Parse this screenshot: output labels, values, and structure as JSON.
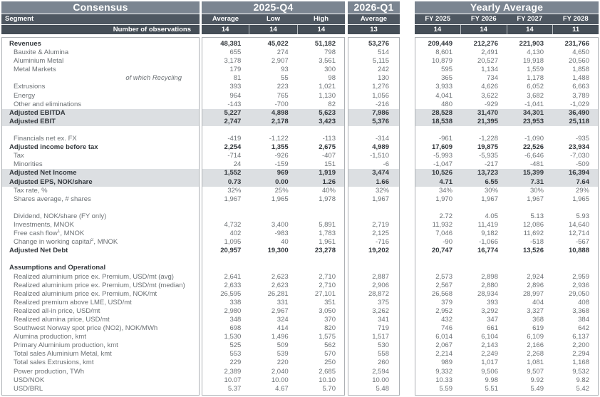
{
  "header": {
    "left": {
      "title": "Consensus",
      "segment": "Segment",
      "obs_label": "Number of observations"
    },
    "q4": {
      "title": "2025-Q4",
      "cols": [
        "Average",
        "Low",
        "High"
      ],
      "obs": [
        "14",
        "14",
        "14"
      ]
    },
    "q1": {
      "title": "2026-Q1",
      "cols": [
        "Average"
      ],
      "obs": [
        "13"
      ]
    },
    "fy": {
      "title": "Yearly Average",
      "cols": [
        "FY 2025",
        "FY 2026",
        "FY 2027",
        "FY 2028"
      ],
      "obs": [
        "14",
        "14",
        "14",
        "11"
      ]
    }
  },
  "colors": {
    "title_band": "#7b8591",
    "column_header_band": "#4e5761",
    "observations_band": "#454e57",
    "highlight_row": "#dcdfe2",
    "body_border": "#adb1b5",
    "text_gray": "#6b7074",
    "text_dark": "#33383d"
  },
  "rows": [
    {
      "label": "Revenues",
      "b": 1,
      "q4": [
        "48,381",
        "45,022",
        "51,182"
      ],
      "q1": [
        "53,276"
      ],
      "fy": [
        "209,449",
        "212,276",
        "221,903",
        "231,766"
      ]
    },
    {
      "label": "Bauxite & Alumina",
      "q4": [
        "655",
        "274",
        "798"
      ],
      "q1": [
        "514"
      ],
      "fy": [
        "8,601",
        "2,491",
        "4,130",
        "4,650"
      ]
    },
    {
      "label": "Aluminium Metal",
      "q4": [
        "3,178",
        "2,907",
        "3,561"
      ],
      "q1": [
        "5,115"
      ],
      "fy": [
        "10,879",
        "20,527",
        "19,918",
        "20,560"
      ]
    },
    {
      "label": "Metal Markets",
      "q4": [
        "179",
        "93",
        "300"
      ],
      "q1": [
        "242"
      ],
      "fy": [
        "595",
        "1,134",
        "1,559",
        "1,858"
      ]
    },
    {
      "label": "of which Recycling",
      "it": 1,
      "q4": [
        "81",
        "55",
        "98"
      ],
      "q1": [
        "130"
      ],
      "fy": [
        "365",
        "734",
        "1,178",
        "1,488"
      ]
    },
    {
      "label": "Extrusions",
      "q4": [
        "393",
        "223",
        "1,021"
      ],
      "q1": [
        "1,276"
      ],
      "fy": [
        "3,933",
        "4,626",
        "6,052",
        "6,663"
      ]
    },
    {
      "label": "Energy",
      "q4": [
        "964",
        "765",
        "1,130"
      ],
      "q1": [
        "1,056"
      ],
      "fy": [
        "4,041",
        "3,622",
        "3,682",
        "3,789"
      ]
    },
    {
      "label": "Other and eliminations",
      "q4": [
        "-143",
        "-700",
        "82"
      ],
      "q1": [
        "-216"
      ],
      "fy": [
        "480",
        "-929",
        "-1,041",
        "-1,029"
      ]
    },
    {
      "label": "Adjusted EBITDA",
      "b": 1,
      "hl": 1,
      "q4": [
        "5,227",
        "4,898",
        "5,623"
      ],
      "q1": [
        "7,986"
      ],
      "fy": [
        "28,528",
        "31,470",
        "34,301",
        "36,490"
      ]
    },
    {
      "label": "Adjusted EBIT",
      "b": 1,
      "hl": 1,
      "q4": [
        "2,747",
        "2,178",
        "3,423"
      ],
      "q1": [
        "5,376"
      ],
      "fy": [
        "18,538",
        "21,395",
        "23,953",
        "25,118"
      ]
    },
    {
      "label": ""
    },
    {
      "label": "Financials net ex. FX",
      "q4": [
        "-419",
        "-1,122",
        "-113"
      ],
      "q1": [
        "-314"
      ],
      "fy": [
        "-961",
        "-1,228",
        "-1,090",
        "-935"
      ]
    },
    {
      "label": "Adjusted income before tax",
      "b": 1,
      "q4": [
        "2,254",
        "1,355",
        "2,675"
      ],
      "q1": [
        "4,989"
      ],
      "fy": [
        "17,609",
        "19,875",
        "22,526",
        "23,934"
      ]
    },
    {
      "label": "Tax",
      "q4": [
        "-714",
        "-926",
        "-407"
      ],
      "q1": [
        "-1,510"
      ],
      "fy": [
        "-5,993",
        "-5,935",
        "-6,646",
        "-7,030"
      ]
    },
    {
      "label": "Minorities",
      "q4": [
        "24",
        "-159",
        "151"
      ],
      "q1": [
        "-6"
      ],
      "fy": [
        "-1,047",
        "-217",
        "-481",
        "-509"
      ]
    },
    {
      "label": "Adjusted Net Income",
      "b": 1,
      "hl": 1,
      "q4": [
        "1,552",
        "969",
        "1,919"
      ],
      "q1": [
        "3,474"
      ],
      "fy": [
        "10,526",
        "13,723",
        "15,399",
        "16,394"
      ]
    },
    {
      "label": "Adjusted EPS, NOK/share",
      "b": 1,
      "hl": 1,
      "q4": [
        "0.73",
        "0.00",
        "1.26"
      ],
      "q1": [
        "1.66"
      ],
      "fy": [
        "4.71",
        "6.55",
        "7.31",
        "7.64"
      ]
    },
    {
      "label": "Tax rate, %",
      "q4": [
        "32%",
        "25%",
        "40%"
      ],
      "q1": [
        "32%"
      ],
      "fy": [
        "34%",
        "30%",
        "30%",
        "29%"
      ]
    },
    {
      "label": "Shares average, # shares",
      "q4": [
        "1,967",
        "1,965",
        "1,978"
      ],
      "q1": [
        "1,967"
      ],
      "fy": [
        "1,970",
        "1,967",
        "1,967",
        "1,965"
      ]
    },
    {
      "label": ""
    },
    {
      "label": "Dividend, NOK/share (FY only)",
      "q4": [
        "",
        "",
        ""
      ],
      "q1": [
        ""
      ],
      "fy": [
        "2.72",
        "4.05",
        "5.13",
        "5.93"
      ]
    },
    {
      "label": "Investments, MNOK",
      "q4": [
        "4,732",
        "3,400",
        "5,891"
      ],
      "q1": [
        "2,719"
      ],
      "fy": [
        "11,932",
        "11,419",
        "12,086",
        "14,640"
      ]
    },
    {
      "label": "Free cash flow",
      "sup": "1",
      "label2": ", MNOK",
      "q4": [
        "402",
        "-983",
        "1,783"
      ],
      "q1": [
        "2,125"
      ],
      "fy": [
        "7,046",
        "9,182",
        "11,692",
        "12,714"
      ]
    },
    {
      "label": "Change in working capital",
      "sup": "2",
      "label2": ", MNOK",
      "q4": [
        "1,095",
        "40",
        "1,961"
      ],
      "q1": [
        "-716"
      ],
      "fy": [
        "-90",
        "-1,066",
        "-518",
        "-567"
      ]
    },
    {
      "label": "Adjusted Net Debt",
      "b": 1,
      "q4": [
        "20,957",
        "19,300",
        "23,278"
      ],
      "q1": [
        "19,202"
      ],
      "fy": [
        "20,747",
        "16,774",
        "13,526",
        "10,888"
      ]
    },
    {
      "label": ""
    },
    {
      "label": "Assumptions and Operational",
      "b": 1
    },
    {
      "label": "Realized aluminium price ex. Premium, USD/mt (avg)",
      "q4": [
        "2,641",
        "2,623",
        "2,710"
      ],
      "q1": [
        "2,887"
      ],
      "fy": [
        "2,573",
        "2,898",
        "2,924",
        "2,959"
      ]
    },
    {
      "label": "Realized aluminium price ex. Premium, USD/mt (median)",
      "q4": [
        "2,633",
        "2,623",
        "2,710"
      ],
      "q1": [
        "2,906"
      ],
      "fy": [
        "2,567",
        "2,880",
        "2,896",
        "2,936"
      ]
    },
    {
      "label": "Realized aluminium price ex. Premium, NOK/mt",
      "q4": [
        "26,595",
        "26,281",
        "27,101"
      ],
      "q1": [
        "28,872"
      ],
      "fy": [
        "26,568",
        "28,934",
        "28,997",
        "29,050"
      ]
    },
    {
      "label": "Realized premium above LME, USD/mt",
      "q4": [
        "338",
        "331",
        "351"
      ],
      "q1": [
        "375"
      ],
      "fy": [
        "379",
        "393",
        "404",
        "408"
      ]
    },
    {
      "label": "Realized all-in price, USD/mt",
      "q4": [
        "2,980",
        "2,967",
        "3,050"
      ],
      "q1": [
        "3,262"
      ],
      "fy": [
        "2,952",
        "3,292",
        "3,327",
        "3,368"
      ]
    },
    {
      "label": "Realized alumina price, USD/mt",
      "q4": [
        "348",
        "324",
        "370"
      ],
      "q1": [
        "341"
      ],
      "fy": [
        "432",
        "347",
        "368",
        "384"
      ]
    },
    {
      "label": "Southwest Norway spot price (NO2), NOK/MWh",
      "q4": [
        "698",
        "414",
        "820"
      ],
      "q1": [
        "719"
      ],
      "fy": [
        "746",
        "661",
        "619",
        "642"
      ]
    },
    {
      "label": "Alumina production, kmt",
      "q4": [
        "1,530",
        "1,496",
        "1,575"
      ],
      "q1": [
        "1,517"
      ],
      "fy": [
        "6,014",
        "6,104",
        "6,109",
        "6,137"
      ]
    },
    {
      "label": "Primary Aluminium production, kmt",
      "q4": [
        "525",
        "509",
        "562"
      ],
      "q1": [
        "530"
      ],
      "fy": [
        "2,067",
        "2,143",
        "2,166",
        "2,200"
      ]
    },
    {
      "label": "Total sales Aluminium Metal, kmt",
      "q4": [
        "553",
        "539",
        "570"
      ],
      "q1": [
        "558"
      ],
      "fy": [
        "2,214",
        "2,249",
        "2,268",
        "2,294"
      ]
    },
    {
      "label": "Total sales Extrusions, kmt",
      "q4": [
        "229",
        "220",
        "250"
      ],
      "q1": [
        "260"
      ],
      "fy": [
        "989",
        "1,017",
        "1,081",
        "1,168"
      ]
    },
    {
      "label": "Power production, TWh",
      "q4": [
        "2,389",
        "2,040",
        "2,685"
      ],
      "q1": [
        "2,594"
      ],
      "fy": [
        "9,332",
        "9,506",
        "9,507",
        "9,532"
      ]
    },
    {
      "label": "USD/NOK",
      "q4": [
        "10.07",
        "10.00",
        "10.10"
      ],
      "q1": [
        "10.00"
      ],
      "fy": [
        "10.33",
        "9.98",
        "9.92",
        "9.82"
      ]
    },
    {
      "label": "USD/BRL",
      "q4": [
        "5.37",
        "4.67",
        "5.70"
      ],
      "q1": [
        "5.48"
      ],
      "fy": [
        "5.59",
        "5.51",
        "5.49",
        "5.42"
      ]
    }
  ]
}
